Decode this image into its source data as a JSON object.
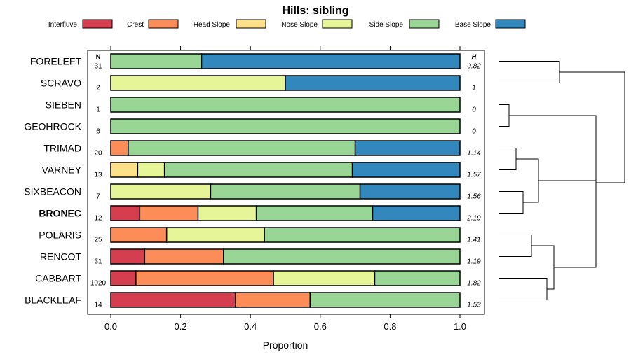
{
  "chart_data": {
    "type": "bar",
    "stacked": true,
    "orientation": "horizontal",
    "title": "Hills: sibling",
    "xlabel": "Proportion",
    "xlim": [
      0,
      1
    ],
    "xticks": [
      "0.0",
      "0.2",
      "0.4",
      "0.6",
      "0.8",
      "1.0"
    ],
    "n_header": "N",
    "h_header": "H",
    "highlight": "BRONEC",
    "legend": [
      {
        "name": "Interfluve",
        "color": "#D53E4F"
      },
      {
        "name": "Crest",
        "color": "#FC8D59"
      },
      {
        "name": "Head Slope",
        "color": "#FEE08B"
      },
      {
        "name": "Nose Slope",
        "color": "#E6F598"
      },
      {
        "name": "Side Slope",
        "color": "#99D594"
      },
      {
        "name": "Base Slope",
        "color": "#3288BD"
      }
    ],
    "rows": [
      {
        "name": "FORELEFT",
        "n": "31",
        "h": "0.82",
        "values": [
          0,
          0,
          0,
          0,
          0.26,
          0.74
        ]
      },
      {
        "name": "SCRAVO",
        "n": "2",
        "h": "1",
        "values": [
          0,
          0,
          0,
          0.5,
          0,
          0.5
        ]
      },
      {
        "name": "SIEBEN",
        "n": "1",
        "h": "0",
        "values": [
          0,
          0,
          0,
          0,
          1.0,
          0
        ]
      },
      {
        "name": "GEOHROCK",
        "n": "6",
        "h": "0",
        "values": [
          0,
          0,
          0,
          0,
          1.0,
          0
        ]
      },
      {
        "name": "TRIMAD",
        "n": "20",
        "h": "1.14",
        "values": [
          0,
          0.05,
          0,
          0,
          0.65,
          0.3
        ]
      },
      {
        "name": "VARNEY",
        "n": "13",
        "h": "1.57",
        "values": [
          0,
          0,
          0.077,
          0.077,
          0.538,
          0.308
        ]
      },
      {
        "name": "SIXBEACON",
        "n": "7",
        "h": "1.56",
        "values": [
          0,
          0,
          0,
          0.286,
          0.428,
          0.286
        ]
      },
      {
        "name": "BRONEC",
        "n": "12",
        "h": "2.19",
        "values": [
          0.083,
          0.167,
          0,
          0.167,
          0.333,
          0.25
        ]
      },
      {
        "name": "POLARIS",
        "n": "25",
        "h": "1.41",
        "values": [
          0,
          0.16,
          0,
          0.28,
          0.56,
          0
        ]
      },
      {
        "name": "RENCOT",
        "n": "31",
        "h": "1.19",
        "values": [
          0.097,
          0.226,
          0,
          0,
          0.677,
          0
        ]
      },
      {
        "name": "CABBART",
        "n": "1020",
        "h": "1.82",
        "values": [
          0.072,
          0.394,
          0,
          0.29,
          0.244,
          0
        ]
      },
      {
        "name": "BLACKLEAF",
        "n": "14",
        "h": "1.53",
        "values": [
          0.357,
          0.214,
          0,
          0,
          0.429,
          0
        ]
      }
    ]
  }
}
